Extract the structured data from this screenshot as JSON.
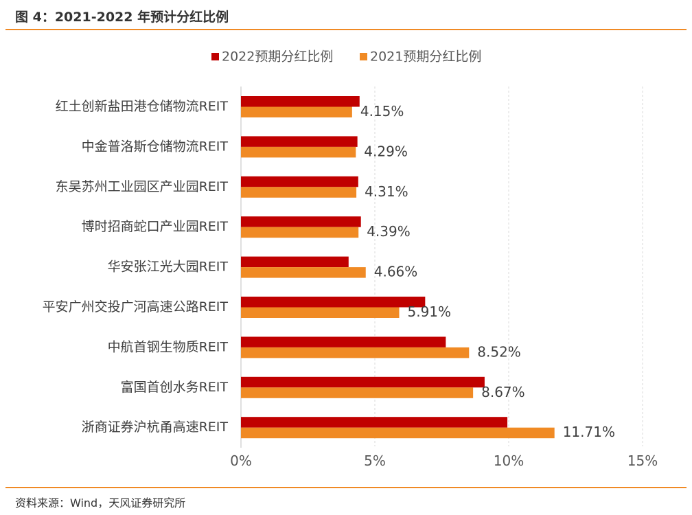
{
  "header": {
    "title": "图 4：2021-2022 年预计分红比例"
  },
  "footer": {
    "source": "资料来源：Wind，天风证券研究所"
  },
  "chart_data": {
    "type": "bar",
    "orientation": "horizontal",
    "categories": [
      "红土创新盐田港仓储物流REIT",
      "中金普洛斯仓储物流REIT",
      "东吴苏州工业园区产业园REIT",
      "博时招商蛇口产业园REIT",
      "华安张江光大园REIT",
      "平安广州交投广河高速公路REIT",
      "中航首钢生物质REIT",
      "富国首创水务REIT",
      "浙商证券沪杭甬高速REIT"
    ],
    "series": [
      {
        "name": "2022预期分红比例",
        "color": "#c00000",
        "values": [
          4.43,
          4.35,
          4.38,
          4.48,
          4.02,
          6.88,
          7.65,
          9.1,
          9.95
        ]
      },
      {
        "name": "2021预期分红比例",
        "color": "#f08a24",
        "values": [
          4.15,
          4.29,
          4.31,
          4.39,
          4.66,
          5.91,
          8.52,
          8.67,
          11.71
        ],
        "labels": [
          "4.15%",
          "4.29%",
          "4.31%",
          "4.39%",
          "4.66%",
          "5.91%",
          "8.52%",
          "8.67%",
          "11.71%"
        ]
      }
    ],
    "xlim": [
      0,
      15
    ],
    "xticks": [
      0,
      5,
      10,
      15
    ],
    "xtick_labels": [
      "0%",
      "5%",
      "10%",
      "15%"
    ],
    "grid": "vertical-dashed",
    "legend_position": "top"
  }
}
